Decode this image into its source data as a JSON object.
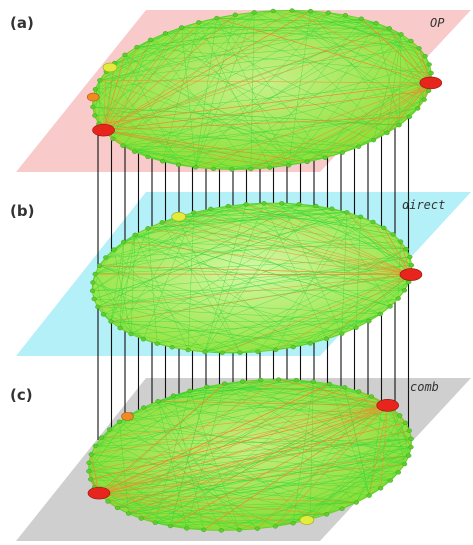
{
  "panels": [
    {
      "id": "a",
      "label": "(a)",
      "layer_name": "OP",
      "plane_color": "#f8caca"
    },
    {
      "id": "b",
      "label": "(b)",
      "layer_name": "direct",
      "plane_color": "#b3f0f7"
    },
    {
      "id": "c",
      "label": "(c)",
      "layer_name": "comb",
      "plane_color": "#cfcfcf"
    }
  ],
  "colors": {
    "network_fill": "#8ce62a",
    "edge_green": "#33d63a",
    "edge_orange": "#f08a2a",
    "hub_red": "#e8251c",
    "node_yellow": "#e3ec3c",
    "node_orange": "#f28a24",
    "node_green": "#5ccf2c",
    "vertical_line": "#111111"
  }
}
